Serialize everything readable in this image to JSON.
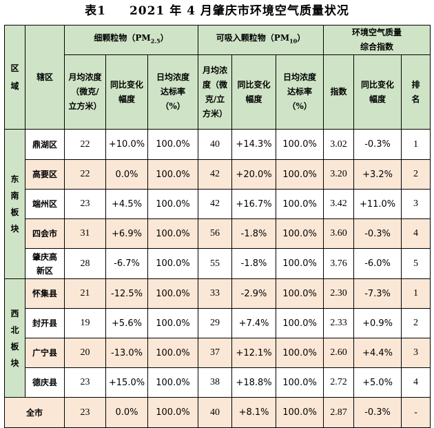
{
  "title": {
    "label": "表1",
    "text": "2021 年 4 月肇庆市环境空气质量状况"
  },
  "header": {
    "region": "区域",
    "district": "辖区",
    "pm25_group_base": "细颗粒物（PM",
    "pm25_group_sub": "2.5",
    "pm25_group_end": "）",
    "pm10_group_base": "可吸入颗粒物（PM",
    "pm10_group_sub": "10",
    "pm10_group_end": "）",
    "aqi_group": "环境空气质量综合指数",
    "monthly_avg": "月均浓度（微克/立方米）",
    "yoy_change": "同比变化幅度",
    "daily_rate": "日均浓度达标率（%）",
    "index": "指数",
    "rank": "排名"
  },
  "regions": {
    "southeast": "东南板块",
    "northwest": "西北板块",
    "city": "全市"
  },
  "rows": [
    {
      "district": "鼎湖区",
      "pm25": "22",
      "pm25_yoy": "+10.0%",
      "pm25_rate": "100.0%",
      "pm10": "40",
      "pm10_yoy": "+14.3%",
      "pm10_rate": "100.0%",
      "index": "3.02",
      "index_yoy": "-0.3%",
      "rank": "1"
    },
    {
      "district": "高要区",
      "pm25": "22",
      "pm25_yoy": "0.0%",
      "pm25_rate": "100.0%",
      "pm10": "42",
      "pm10_yoy": "+20.0%",
      "pm10_rate": "100.0%",
      "index": "3.20",
      "index_yoy": "+3.2%",
      "rank": "2"
    },
    {
      "district": "端州区",
      "pm25": "23",
      "pm25_yoy": "+4.5%",
      "pm25_rate": "100.0%",
      "pm10": "42",
      "pm10_yoy": "+16.7%",
      "pm10_rate": "100.0%",
      "index": "3.42",
      "index_yoy": "+11.0%",
      "rank": "3"
    },
    {
      "district": "四会市",
      "pm25": "31",
      "pm25_yoy": "+6.9%",
      "pm25_rate": "100.0%",
      "pm10": "56",
      "pm10_yoy": "-1.8%",
      "pm10_rate": "100.0%",
      "index": "3.60",
      "index_yoy": "-0.3%",
      "rank": "4"
    },
    {
      "district": "肇庆高新区",
      "pm25": "28",
      "pm25_yoy": "-6.7%",
      "pm25_rate": "100.0%",
      "pm10": "55",
      "pm10_yoy": "-1.8%",
      "pm10_rate": "100.0%",
      "index": "3.76",
      "index_yoy": "-6.0%",
      "rank": "5"
    },
    {
      "district": "怀集县",
      "pm25": "21",
      "pm25_yoy": "-12.5%",
      "pm25_rate": "100.0%",
      "pm10": "33",
      "pm10_yoy": "-2.9%",
      "pm10_rate": "100.0%",
      "index": "2.30",
      "index_yoy": "-7.3%",
      "rank": "1"
    },
    {
      "district": "封开县",
      "pm25": "19",
      "pm25_yoy": "+5.6%",
      "pm25_rate": "100.0%",
      "pm10": "29",
      "pm10_yoy": "+7.4%",
      "pm10_rate": "100.0%",
      "index": "2.33",
      "index_yoy": "+0.9%",
      "rank": "2"
    },
    {
      "district": "广宁县",
      "pm25": "20",
      "pm25_yoy": "-13.0%",
      "pm25_rate": "100.0%",
      "pm10": "37",
      "pm10_yoy": "+12.1%",
      "pm10_rate": "100.0%",
      "index": "2.60",
      "index_yoy": "+4.4%",
      "rank": "3"
    },
    {
      "district": "德庆县",
      "pm25": "23",
      "pm25_yoy": "+15.0%",
      "pm25_rate": "100.0%",
      "pm10": "38",
      "pm10_yoy": "+18.8%",
      "pm10_rate": "100.0%",
      "index": "2.72",
      "index_yoy": "+5.0%",
      "rank": "4"
    }
  ],
  "city_total": {
    "pm25": "23",
    "pm25_yoy": "0.0%",
    "pm25_rate": "100.0%",
    "pm10": "40",
    "pm10_yoy": "+8.1%",
    "pm10_rate": "100.0%",
    "index": "2.87",
    "index_yoy": "-0.3%",
    "rank": "-"
  },
  "colors": {
    "header_green": "#cfe4c6",
    "row_peach": "#fbe7d6",
    "row_white": "#ffffff"
  }
}
